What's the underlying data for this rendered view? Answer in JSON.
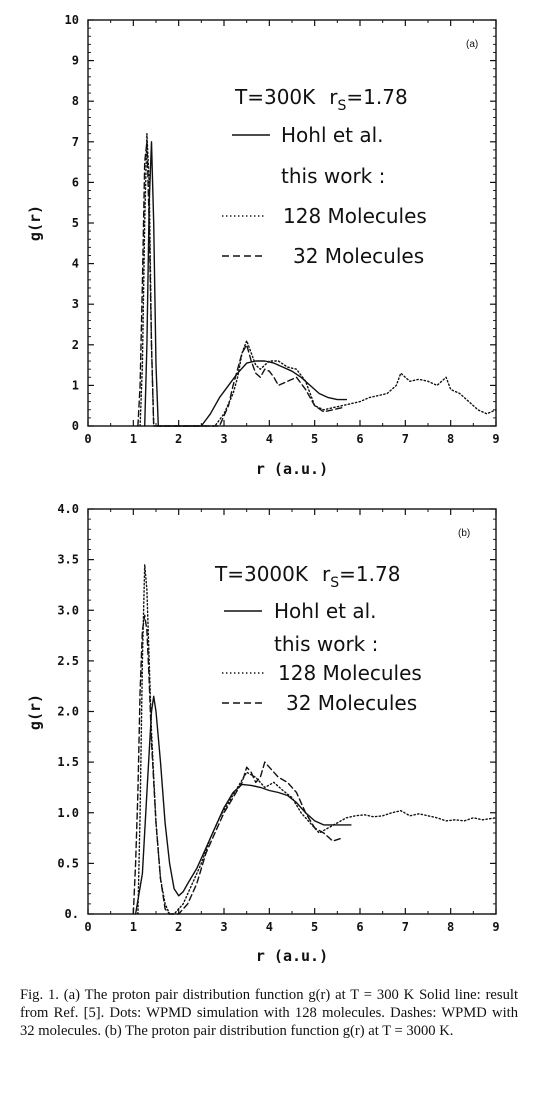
{
  "caption": "Fig. 1. (a) The proton pair distribution function g(r) at T = 300 K Solid line: result from Ref. [5]. Dots: WPMD simulation with 128 molecules. Dashes: WPMD with 32 molecules. (b) The proton pair distribution function g(r) at T = 3000 K.",
  "chart_data": [
    {
      "type": "line",
      "panel_label": "(a)",
      "xlabel": "r (a.u.)",
      "ylabel": "g(r)",
      "xlim": [
        0,
        9
      ],
      "ylim": [
        0,
        10
      ],
      "xticks": [
        "0",
        "1",
        "2",
        "3",
        "4",
        "5",
        "6",
        "7",
        "8",
        "9"
      ],
      "yticks": [
        "0",
        "1",
        "2",
        "3",
        "4",
        "5",
        "6",
        "7",
        "8",
        "9",
        "10"
      ],
      "legend": {
        "condition": "T=300K",
        "rs_symbol": "r",
        "rs_sub": "S",
        "rs_value": "=1.78",
        "hohl": "Hohl et al.",
        "this_work": "this work :",
        "m128": "128 Molecules",
        "m32": "32 Molecules"
      },
      "series": [
        {
          "name": "Hohl et al.",
          "style": "solid",
          "x": [
            1.25,
            1.3,
            1.35,
            1.4,
            1.45,
            1.5,
            1.55,
            2.5,
            2.7,
            2.9,
            3.1,
            3.3,
            3.5,
            3.7,
            3.9,
            4.1,
            4.3,
            4.5,
            4.7,
            4.9,
            5.1,
            5.3,
            5.5,
            5.7
          ],
          "y": [
            0,
            2,
            5.5,
            7.0,
            5.0,
            1.5,
            0,
            0,
            0.3,
            0.7,
            1.0,
            1.3,
            1.55,
            1.6,
            1.6,
            1.55,
            1.45,
            1.35,
            1.2,
            1.0,
            0.8,
            0.7,
            0.65,
            0.65
          ]
        },
        {
          "name": "128 Molecules",
          "style": "dotted",
          "x": [
            1.15,
            1.2,
            1.25,
            1.3,
            1.35,
            1.4,
            1.45,
            2.8,
            3.0,
            3.2,
            3.3,
            3.4,
            3.5,
            3.6,
            3.7,
            3.8,
            3.9,
            4.0,
            4.2,
            4.4,
            4.6,
            4.8,
            5.0,
            5.2,
            5.4,
            5.6,
            5.8,
            6.0,
            6.2,
            6.4,
            6.6,
            6.8,
            6.9,
            7.0,
            7.1,
            7.3,
            7.5,
            7.7,
            7.9,
            8.0,
            8.2,
            8.4,
            8.6,
            8.8,
            9.0
          ],
          "y": [
            0,
            1.5,
            5.0,
            7.2,
            6.0,
            2.0,
            0,
            0,
            0.3,
            0.8,
            1.2,
            1.8,
            2.1,
            1.8,
            1.5,
            1.4,
            1.5,
            1.6,
            1.6,
            1.45,
            1.4,
            1.1,
            0.5,
            0.4,
            0.45,
            0.5,
            0.55,
            0.6,
            0.7,
            0.75,
            0.8,
            1.0,
            1.3,
            1.2,
            1.1,
            1.15,
            1.1,
            1.0,
            1.2,
            0.9,
            0.8,
            0.6,
            0.4,
            0.3,
            0.4
          ]
        },
        {
          "name": "32 Molecules",
          "style": "dashed",
          "x": [
            1.1,
            1.15,
            1.2,
            1.25,
            1.3,
            1.35,
            1.4,
            1.45,
            2.9,
            3.1,
            3.2,
            3.3,
            3.4,
            3.5,
            3.6,
            3.7,
            3.8,
            3.9,
            4.0,
            4.1,
            4.2,
            4.4,
            4.6,
            4.8,
            5.0,
            5.2,
            5.4,
            5.6
          ],
          "y": [
            0,
            1.0,
            3.5,
            6.5,
            7.0,
            5.0,
            2.0,
            0,
            0,
            0.5,
            1.0,
            1.4,
            1.8,
            2.0,
            1.6,
            1.3,
            1.2,
            1.4,
            1.35,
            1.2,
            1.0,
            1.1,
            1.2,
            0.9,
            0.5,
            0.35,
            0.4,
            0.45
          ]
        }
      ]
    },
    {
      "type": "line",
      "panel_label": "(b)",
      "xlabel": "r (a.u.)",
      "ylabel": "g(r)",
      "xlim": [
        0,
        9
      ],
      "ylim": [
        0,
        4
      ],
      "xticks": [
        "0",
        "1",
        "2",
        "3",
        "4",
        "5",
        "6",
        "7",
        "8",
        "9"
      ],
      "yticks": [
        "0.",
        "0.5",
        "1.0",
        "1.5",
        "2.0",
        "2.5",
        "3.0",
        "3.5",
        "4.0"
      ],
      "legend": {
        "condition": "T=3000K",
        "rs_symbol": "r",
        "rs_sub": "S",
        "rs_value": "=1.78",
        "hohl": "Hohl et al.",
        "this_work": "this work :",
        "m128": "128 Molecules",
        "m32": "32 Molecules"
      },
      "series": [
        {
          "name": "Hohl et al.",
          "style": "solid",
          "x": [
            1.05,
            1.2,
            1.3,
            1.4,
            1.45,
            1.5,
            1.6,
            1.7,
            1.8,
            1.9,
            2.0,
            2.1,
            2.2,
            2.4,
            2.6,
            2.8,
            3.0,
            3.2,
            3.4,
            3.6,
            3.8,
            4.0,
            4.2,
            4.4,
            4.6,
            4.8,
            5.0,
            5.2,
            5.4,
            5.6,
            5.8
          ],
          "y": [
            0,
            0.4,
            1.2,
            2.0,
            2.15,
            2.0,
            1.5,
            0.9,
            0.5,
            0.25,
            0.18,
            0.22,
            0.3,
            0.45,
            0.65,
            0.85,
            1.05,
            1.2,
            1.28,
            1.27,
            1.25,
            1.22,
            1.2,
            1.17,
            1.1,
            1.0,
            0.92,
            0.88,
            0.88,
            0.88,
            0.88
          ]
        },
        {
          "name": "128 Molecules",
          "style": "dotted",
          "x": [
            1.1,
            1.15,
            1.2,
            1.25,
            1.3,
            1.35,
            1.4,
            1.5,
            1.6,
            1.7,
            1.8,
            1.9,
            2.1,
            2.3,
            2.5,
            2.7,
            2.9,
            3.1,
            3.3,
            3.5,
            3.7,
            3.9,
            4.1,
            4.3,
            4.5,
            4.7,
            4.9,
            5.1,
            5.3,
            5.5,
            5.7,
            5.9,
            6.1,
            6.3,
            6.5,
            6.7,
            6.9,
            7.1,
            7.3,
            7.5,
            7.7,
            7.9,
            8.1,
            8.3,
            8.5,
            8.7,
            9.0
          ],
          "y": [
            0,
            1.0,
            2.5,
            3.45,
            3.2,
            2.5,
            1.8,
            0.9,
            0.35,
            0.1,
            0.0,
            0.0,
            0.1,
            0.3,
            0.5,
            0.75,
            0.95,
            1.1,
            1.25,
            1.4,
            1.35,
            1.25,
            1.3,
            1.22,
            1.15,
            1.0,
            0.9,
            0.8,
            0.85,
            0.9,
            0.95,
            0.97,
            0.98,
            0.96,
            0.97,
            1.0,
            1.02,
            0.97,
            0.99,
            0.97,
            0.95,
            0.92,
            0.93,
            0.92,
            0.95,
            0.93,
            0.95
          ]
        },
        {
          "name": "32 Molecules",
          "style": "dashed",
          "x": [
            1.0,
            1.05,
            1.1,
            1.15,
            1.2,
            1.25,
            1.3,
            1.35,
            1.4,
            1.5,
            1.6,
            1.7,
            1.8,
            1.9,
            2.0,
            2.2,
            2.4,
            2.6,
            2.8,
            3.0,
            3.2,
            3.4,
            3.5,
            3.6,
            3.7,
            3.8,
            3.9,
            4.0,
            4.1,
            4.2,
            4.4,
            4.6,
            4.8,
            5.0,
            5.2,
            5.4,
            5.6
          ],
          "y": [
            0,
            0.5,
            1.2,
            2.2,
            2.8,
            2.95,
            2.8,
            2.3,
            1.7,
            0.9,
            0.35,
            0.05,
            0.0,
            0.0,
            0.0,
            0.1,
            0.3,
            0.6,
            0.8,
            1.0,
            1.15,
            1.3,
            1.45,
            1.4,
            1.3,
            1.35,
            1.5,
            1.45,
            1.4,
            1.35,
            1.3,
            1.2,
            1.0,
            0.85,
            0.8,
            0.72,
            0.75
          ]
        }
      ]
    }
  ]
}
